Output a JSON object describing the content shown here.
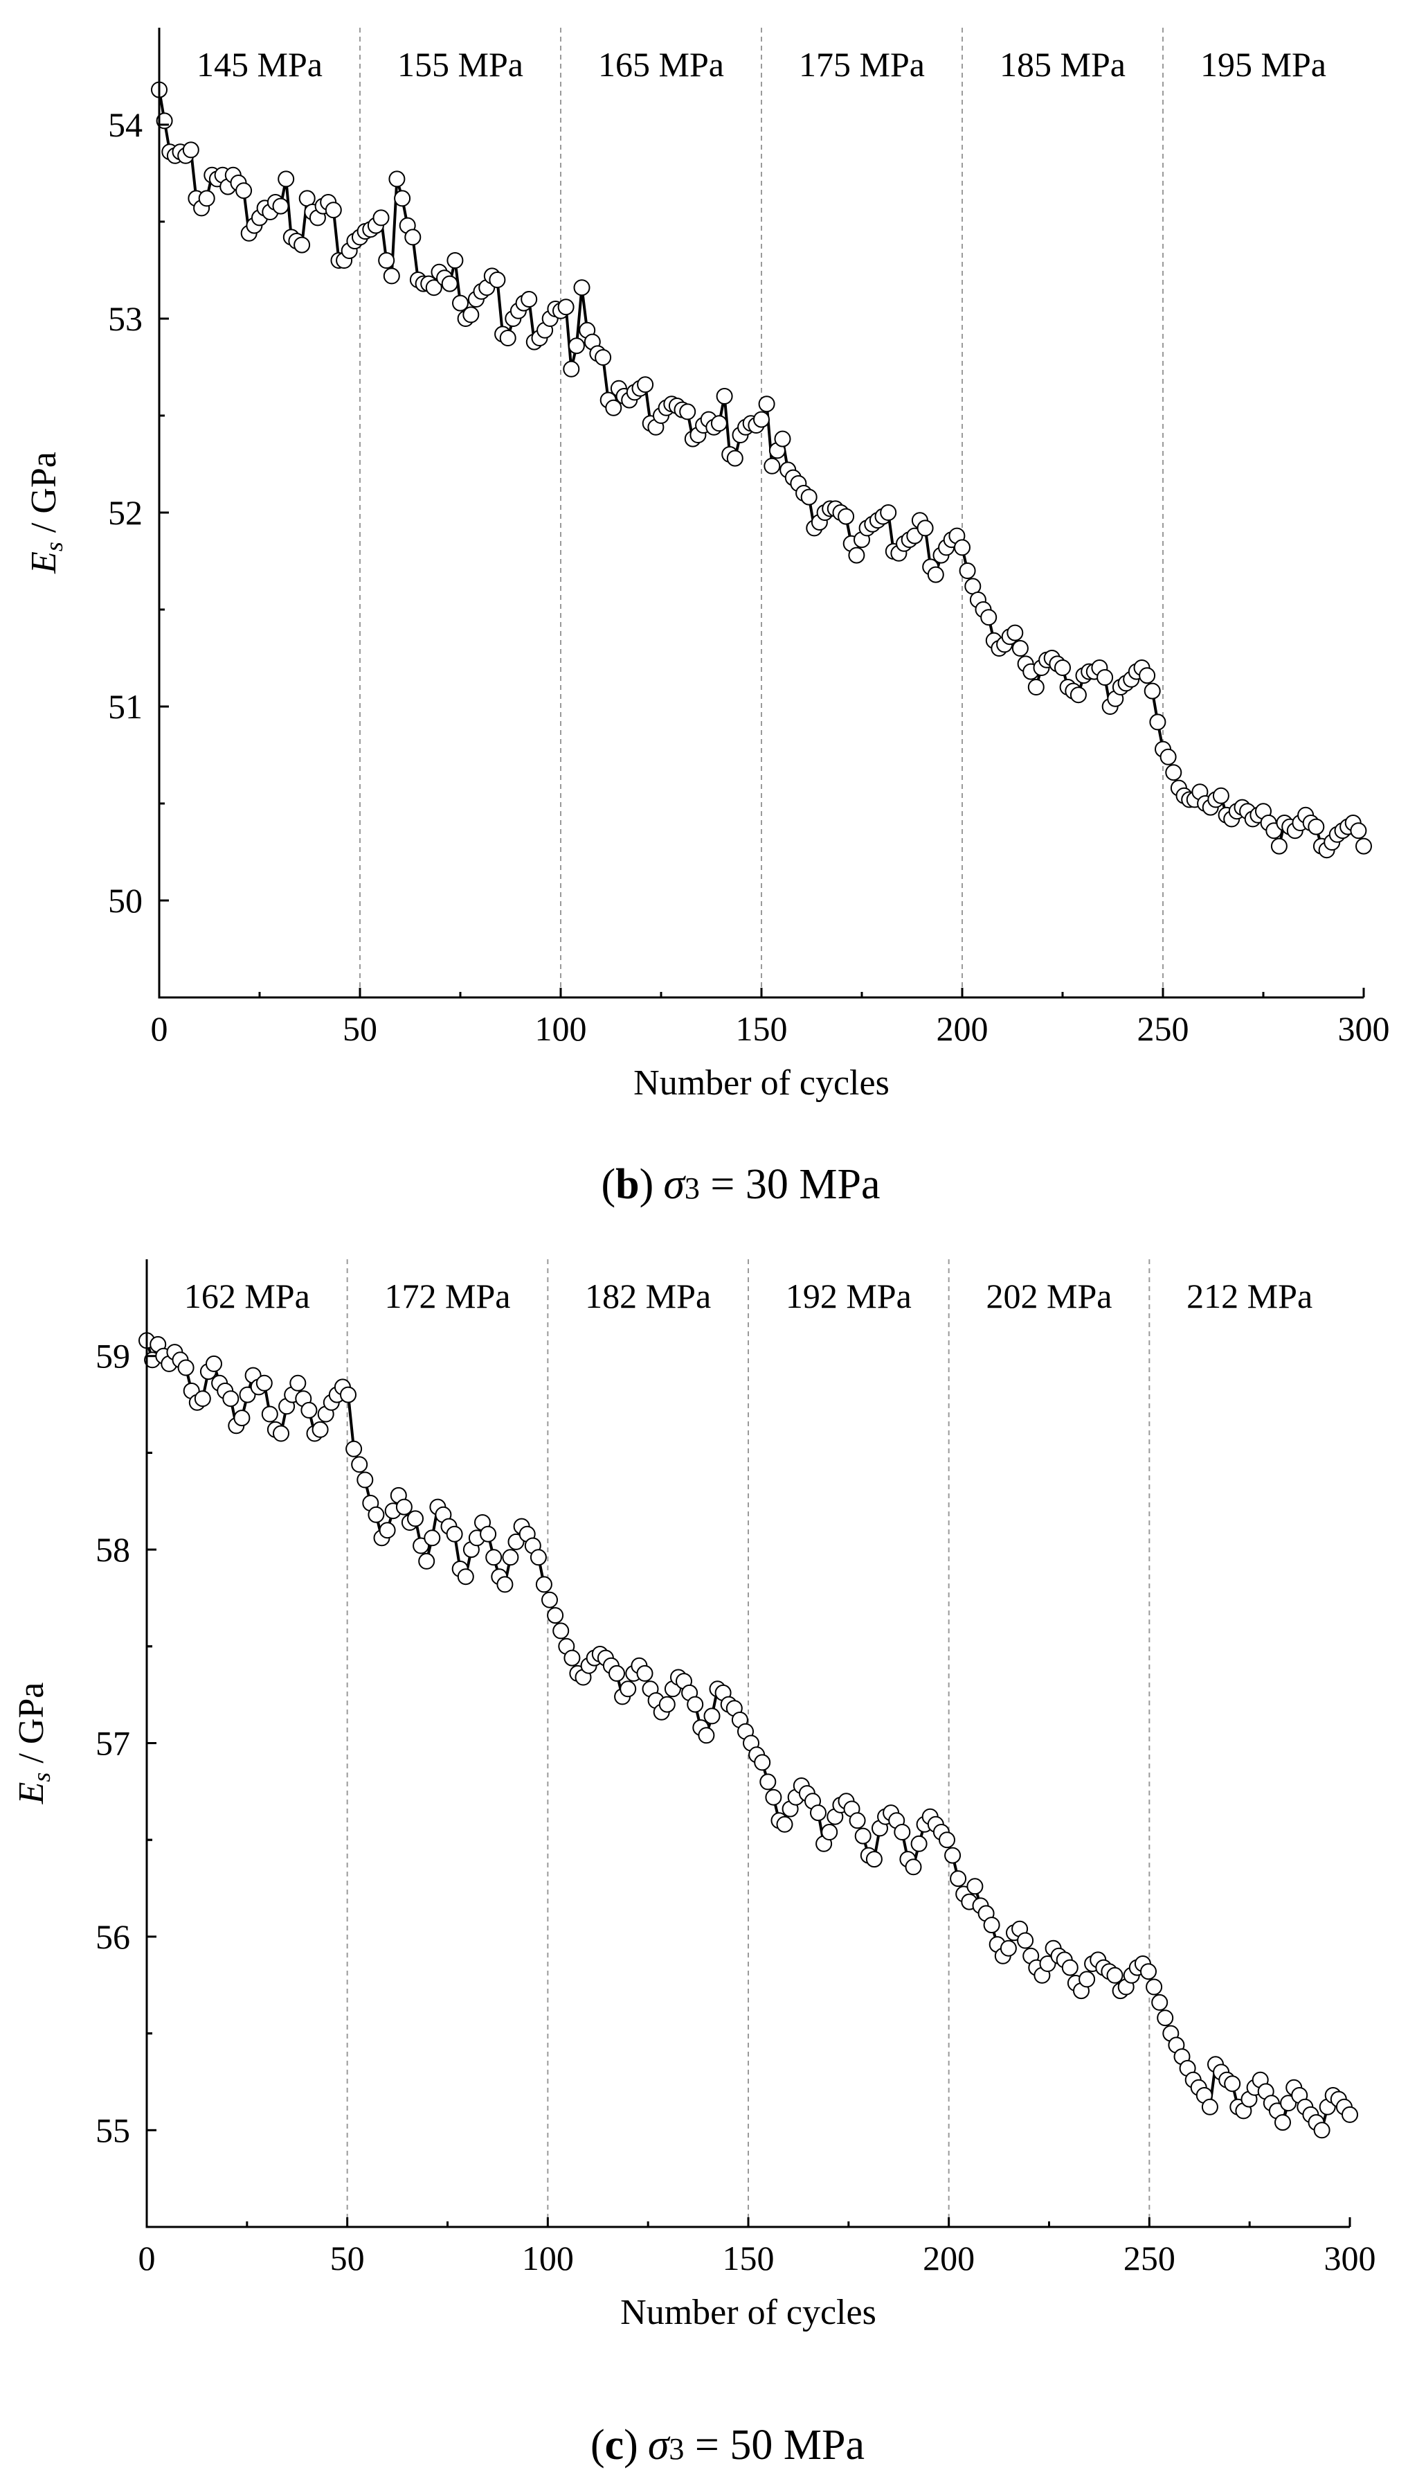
{
  "chart_data": [
    {
      "id": "b",
      "type": "scatter",
      "caption": {
        "open": "(",
        "letter": "b",
        "close": ")",
        "symbol": "σ",
        "sub": "3",
        "rest": " = 30 MPa"
      },
      "xlabel": "Number of cycles",
      "ylabel": {
        "main": "E",
        "sub": "s",
        "rest": " / GPa"
      },
      "xlim": [
        0,
        300
      ],
      "ylim": [
        49.5,
        54.5
      ],
      "xticks": [
        0,
        50,
        100,
        150,
        200,
        250,
        300
      ],
      "yticks": [
        50,
        51,
        52,
        53,
        54
      ],
      "stage_boundaries": [
        50,
        100,
        150,
        200,
        250
      ],
      "stage_labels": [
        {
          "x": 25,
          "label": "145 MPa"
        },
        {
          "x": 75,
          "label": "155 MPa"
        },
        {
          "x": 125,
          "label": "165 MPa"
        },
        {
          "x": 175,
          "label": "175 MPa"
        },
        {
          "x": 225,
          "label": "185 MPa"
        },
        {
          "x": 275,
          "label": "195 MPa"
        }
      ],
      "series": [
        {
          "name": "Es",
          "values": [
            54.18,
            54.02,
            53.86,
            53.84,
            53.86,
            53.84,
            53.87,
            53.62,
            53.57,
            53.62,
            53.74,
            53.72,
            53.74,
            53.68,
            53.74,
            53.7,
            53.66,
            53.44,
            53.48,
            53.52,
            53.57,
            53.55,
            53.6,
            53.58,
            53.72,
            53.42,
            53.4,
            53.38,
            53.62,
            53.55,
            53.52,
            53.58,
            53.6,
            53.56,
            53.3,
            53.3,
            53.35,
            53.4,
            53.42,
            53.45,
            53.46,
            53.48,
            53.52,
            53.3,
            53.22,
            53.72,
            53.62,
            53.48,
            53.42,
            53.2,
            53.18,
            53.18,
            53.16,
            53.24,
            53.21,
            53.18,
            53.3,
            53.08,
            53.0,
            53.02,
            53.1,
            53.14,
            53.16,
            53.22,
            53.2,
            52.92,
            52.9,
            53.0,
            53.04,
            53.08,
            53.1,
            52.88,
            52.9,
            52.94,
            53.0,
            53.05,
            53.04,
            53.06,
            52.74,
            52.86,
            53.16,
            52.94,
            52.88,
            52.82,
            52.8,
            52.58,
            52.54,
            52.64,
            52.6,
            52.58,
            52.62,
            52.64,
            52.66,
            52.46,
            52.44,
            52.5,
            52.54,
            52.56,
            52.55,
            52.53,
            52.52,
            52.38,
            52.4,
            52.45,
            52.48,
            52.44,
            52.46,
            52.6,
            52.3,
            52.28,
            52.4,
            52.44,
            52.46,
            52.45,
            52.48,
            52.56,
            52.24,
            52.32,
            52.38,
            52.22,
            52.18,
            52.15,
            52.1,
            52.08,
            51.92,
            51.95,
            52.0,
            52.02,
            52.02,
            52.0,
            51.98,
            51.84,
            51.78,
            51.86,
            51.92,
            51.94,
            51.96,
            51.98,
            52.0,
            51.8,
            51.79,
            51.84,
            51.86,
            51.88,
            51.96,
            51.92,
            51.72,
            51.68,
            51.78,
            51.82,
            51.86,
            51.88,
            51.82,
            51.7,
            51.62,
            51.55,
            51.5,
            51.46,
            51.34,
            51.3,
            51.32,
            51.36,
            51.38,
            51.3,
            51.22,
            51.18,
            51.1,
            51.2,
            51.24,
            51.25,
            51.22,
            51.2,
            51.1,
            51.08,
            51.06,
            51.16,
            51.18,
            51.18,
            51.2,
            51.15,
            51.0,
            51.04,
            51.1,
            51.12,
            51.14,
            51.18,
            51.2,
            51.16,
            51.08,
            50.92,
            50.78,
            50.74,
            50.66,
            50.58,
            50.54,
            50.52,
            50.52,
            50.56,
            50.5,
            50.48,
            50.52,
            50.54,
            50.44,
            50.42,
            50.46,
            50.48,
            50.46,
            50.42,
            50.44,
            50.46,
            50.4,
            50.36,
            50.28,
            50.4,
            50.38,
            50.36,
            50.4,
            50.44,
            50.4,
            50.38,
            50.28,
            50.26,
            50.3,
            50.34,
            50.36,
            50.38,
            50.4,
            50.36,
            50.28
          ]
        }
      ]
    },
    {
      "id": "c",
      "type": "scatter",
      "caption": {
        "open": "(",
        "letter": "c",
        "close": ")",
        "symbol": "σ",
        "sub": "3",
        "rest": " = 50 MPa"
      },
      "xlabel": "Number of cycles",
      "ylabel": {
        "main": "E",
        "sub": "s",
        "rest": " / GPa"
      },
      "xlim": [
        0,
        300
      ],
      "ylim": [
        54.5,
        59.5
      ],
      "xticks": [
        0,
        50,
        100,
        150,
        200,
        250,
        300
      ],
      "yticks": [
        55,
        56,
        57,
        58,
        59
      ],
      "stage_boundaries": [
        50,
        100,
        150,
        200,
        250
      ],
      "stage_labels": [
        {
          "x": 25,
          "label": "162 MPa"
        },
        {
          "x": 75,
          "label": "172 MPa"
        },
        {
          "x": 125,
          "label": "182 MPa"
        },
        {
          "x": 175,
          "label": "192 MPa"
        },
        {
          "x": 225,
          "label": "202 MPa"
        },
        {
          "x": 275,
          "label": "212 MPa"
        }
      ],
      "series": [
        {
          "name": "Es",
          "values": [
            59.08,
            58.98,
            59.06,
            59.0,
            58.96,
            59.02,
            58.98,
            58.94,
            58.82,
            58.76,
            58.78,
            58.92,
            58.96,
            58.86,
            58.82,
            58.78,
            58.64,
            58.68,
            58.8,
            58.9,
            58.84,
            58.86,
            58.7,
            58.62,
            58.6,
            58.74,
            58.8,
            58.86,
            58.78,
            58.72,
            58.6,
            58.62,
            58.7,
            58.76,
            58.8,
            58.84,
            58.8,
            58.52,
            58.44,
            58.36,
            58.24,
            58.18,
            58.06,
            58.1,
            58.2,
            58.28,
            58.22,
            58.14,
            58.16,
            58.02,
            57.94,
            58.06,
            58.22,
            58.18,
            58.12,
            58.08,
            57.9,
            57.86,
            58.0,
            58.06,
            58.14,
            58.08,
            57.96,
            57.86,
            57.82,
            57.96,
            58.04,
            58.12,
            58.08,
            58.02,
            57.96,
            57.82,
            57.74,
            57.66,
            57.58,
            57.5,
            57.44,
            57.36,
            57.34,
            57.4,
            57.44,
            57.46,
            57.44,
            57.4,
            57.36,
            57.24,
            57.28,
            57.36,
            57.4,
            57.36,
            57.28,
            57.22,
            57.16,
            57.2,
            57.28,
            57.34,
            57.32,
            57.26,
            57.2,
            57.08,
            57.04,
            57.14,
            57.28,
            57.26,
            57.2,
            57.18,
            57.12,
            57.06,
            57.0,
            56.94,
            56.9,
            56.8,
            56.72,
            56.6,
            56.58,
            56.66,
            56.72,
            56.78,
            56.74,
            56.7,
            56.64,
            56.48,
            56.54,
            56.62,
            56.68,
            56.7,
            56.66,
            56.6,
            56.52,
            56.42,
            56.4,
            56.56,
            56.62,
            56.64,
            56.6,
            56.54,
            56.4,
            56.36,
            56.48,
            56.58,
            56.62,
            56.58,
            56.54,
            56.5,
            56.42,
            56.3,
            56.22,
            56.18,
            56.26,
            56.16,
            56.12,
            56.06,
            55.96,
            55.9,
            55.94,
            56.02,
            56.04,
            55.98,
            55.9,
            55.84,
            55.8,
            55.86,
            55.94,
            55.9,
            55.88,
            55.84,
            55.76,
            55.72,
            55.78,
            55.86,
            55.88,
            55.84,
            55.82,
            55.8,
            55.72,
            55.74,
            55.8,
            55.84,
            55.86,
            55.82,
            55.74,
            55.66,
            55.58,
            55.5,
            55.44,
            55.38,
            55.32,
            55.26,
            55.22,
            55.18,
            55.12,
            55.34,
            55.3,
            55.26,
            55.24,
            55.12,
            55.1,
            55.16,
            55.22,
            55.26,
            55.2,
            55.14,
            55.1,
            55.04,
            55.14,
            55.22,
            55.18,
            55.12,
            55.08,
            55.04,
            55.0,
            55.12,
            55.18,
            55.16,
            55.12,
            55.08
          ]
        }
      ]
    }
  ]
}
